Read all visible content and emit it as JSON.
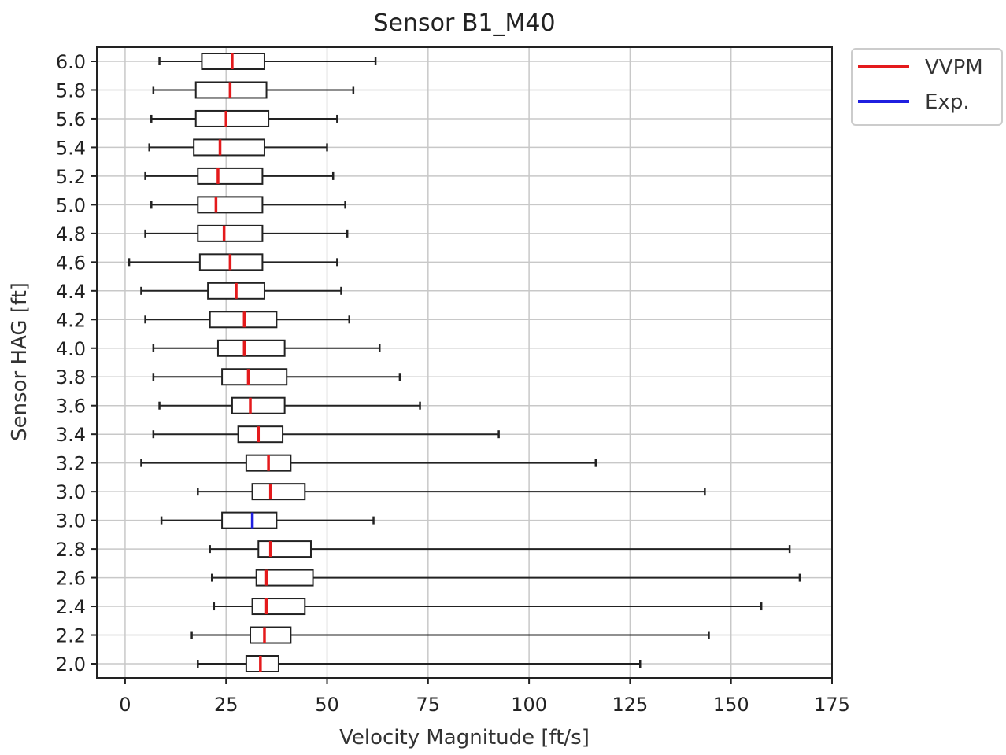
{
  "chart_data": {
    "type": "boxplot",
    "orientation": "horizontal",
    "title": "Sensor B1_M40",
    "xlabel": "Velocity Magnitude [ft/s]",
    "ylabel": "Sensor HAG [ft]",
    "xlim": [
      -7,
      175
    ],
    "x_ticks": [
      0,
      25,
      50,
      75,
      100,
      125,
      150,
      175
    ],
    "grid": true,
    "legend": {
      "placement": "outside-top-right",
      "entries": [
        {
          "label": "VVPM",
          "color": "#e41a1c"
        },
        {
          "label": "Exp.",
          "color": "#1f1fe0"
        }
      ]
    },
    "categories": [
      "6.0",
      "5.8",
      "5.6",
      "5.4",
      "5.2",
      "5.0",
      "4.8",
      "4.6",
      "4.4",
      "4.2",
      "4.0",
      "3.8",
      "3.6",
      "3.4",
      "3.2",
      "3.0",
      "3.0",
      "2.8",
      "2.6",
      "2.4",
      "2.2",
      "2.0"
    ],
    "boxes": [
      {
        "label": "6.0",
        "series": "VVPM",
        "min": 8.5,
        "q1": 19,
        "median": 26.5,
        "q3": 34.5,
        "max": 62
      },
      {
        "label": "5.8",
        "series": "VVPM",
        "min": 7,
        "q1": 17.5,
        "median": 26,
        "q3": 35,
        "max": 56.5
      },
      {
        "label": "5.6",
        "series": "VVPM",
        "min": 6.5,
        "q1": 17.5,
        "median": 25,
        "q3": 35.5,
        "max": 52.5
      },
      {
        "label": "5.4",
        "series": "VVPM",
        "min": 6,
        "q1": 17,
        "median": 23.5,
        "q3": 34.5,
        "max": 50
      },
      {
        "label": "5.2",
        "series": "VVPM",
        "min": 5,
        "q1": 18,
        "median": 23,
        "q3": 34,
        "max": 51.5
      },
      {
        "label": "5.0",
        "series": "VVPM",
        "min": 6.5,
        "q1": 18,
        "median": 22.5,
        "q3": 34,
        "max": 54.5
      },
      {
        "label": "4.8",
        "series": "VVPM",
        "min": 5,
        "q1": 18,
        "median": 24.5,
        "q3": 34,
        "max": 55
      },
      {
        "label": "4.6",
        "series": "VVPM",
        "min": 1,
        "q1": 18.5,
        "median": 26,
        "q3": 34,
        "max": 52.5
      },
      {
        "label": "4.4",
        "series": "VVPM",
        "min": 4,
        "q1": 20.5,
        "median": 27.5,
        "q3": 34.5,
        "max": 53.5
      },
      {
        "label": "4.2",
        "series": "VVPM",
        "min": 5,
        "q1": 21,
        "median": 29.5,
        "q3": 37.5,
        "max": 55.5
      },
      {
        "label": "4.0",
        "series": "VVPM",
        "min": 7,
        "q1": 23,
        "median": 29.5,
        "q3": 39.5,
        "max": 63
      },
      {
        "label": "3.8",
        "series": "VVPM",
        "min": 7,
        "q1": 24,
        "median": 30.5,
        "q3": 40,
        "max": 68
      },
      {
        "label": "3.6",
        "series": "VVPM",
        "min": 8.5,
        "q1": 26.5,
        "median": 31,
        "q3": 39.5,
        "max": 73
      },
      {
        "label": "3.4",
        "series": "VVPM",
        "min": 7,
        "q1": 28,
        "median": 33,
        "q3": 39,
        "max": 92.5
      },
      {
        "label": "3.2",
        "series": "VVPM",
        "min": 4,
        "q1": 30,
        "median": 35.5,
        "q3": 41,
        "max": 116.5
      },
      {
        "label": "3.0",
        "series": "VVPM",
        "min": 18,
        "q1": 31.5,
        "median": 36,
        "q3": 44.5,
        "max": 143.5
      },
      {
        "label": "3.0",
        "series": "Exp.",
        "min": 9,
        "q1": 24,
        "median": 31.5,
        "q3": 37.5,
        "max": 61.5
      },
      {
        "label": "2.8",
        "series": "VVPM",
        "min": 21,
        "q1": 33,
        "median": 36,
        "q3": 46,
        "max": 164.5
      },
      {
        "label": "2.6",
        "series": "VVPM",
        "min": 21.5,
        "q1": 32.5,
        "median": 35,
        "q3": 46.5,
        "max": 167
      },
      {
        "label": "2.4",
        "series": "VVPM",
        "min": 22,
        "q1": 31.5,
        "median": 35,
        "q3": 44.5,
        "max": 157.5
      },
      {
        "label": "2.2",
        "series": "VVPM",
        "min": 16.5,
        "q1": 31,
        "median": 34.5,
        "q3": 41,
        "max": 144.5
      },
      {
        "label": "2.0",
        "series": "VVPM",
        "min": 18,
        "q1": 30,
        "median": 33.5,
        "q3": 38,
        "max": 127.5
      }
    ]
  }
}
